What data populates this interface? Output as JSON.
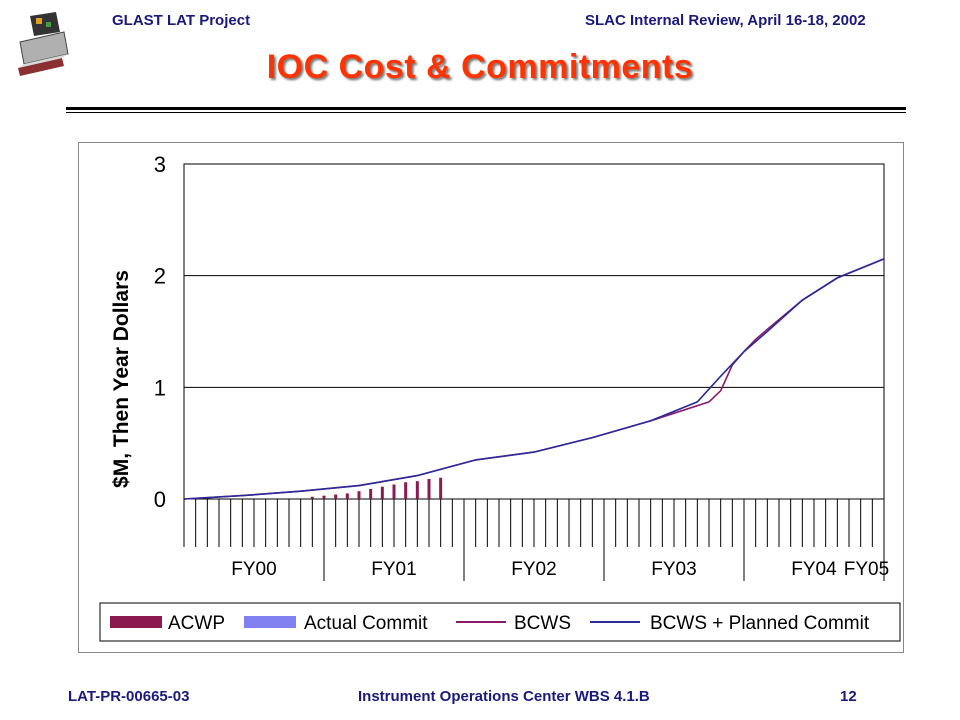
{
  "header": {
    "left": "GLAST LAT Project",
    "right": "SLAC Internal Review, April 16-18, 2002"
  },
  "title": "IOC Cost & Commitments",
  "footer": {
    "left": "LAT-PR-00665-03",
    "center": "Instrument Operations Center WBS 4.1.B",
    "page": "12"
  },
  "logo_icon": "glast-satellite-icon",
  "chart_data": {
    "type": "line",
    "ylabel": "$M, Then Year Dollars",
    "ylim": [
      0,
      3
    ],
    "yticks": [
      0,
      1,
      2,
      3
    ],
    "x_unit": "months from Oct 1999 (FY00 start)",
    "xlim": [
      0,
      60
    ],
    "fiscal_years": [
      "FY00",
      "FY01",
      "FY02",
      "FY03",
      "FY04",
      "FY05"
    ],
    "grid": true,
    "legend_position": "bottom",
    "series": [
      {
        "name": "ACWP",
        "kind": "bar",
        "color": "#8b1a4f",
        "x": [
          11,
          12,
          13,
          14,
          15,
          16,
          17,
          18,
          19,
          20,
          21,
          22
        ],
        "values": [
          0.02,
          0.03,
          0.04,
          0.05,
          0.07,
          0.09,
          0.11,
          0.13,
          0.15,
          0.16,
          0.18,
          0.19
        ]
      },
      {
        "name": "Actual Commit",
        "kind": "bar",
        "color": "#8080f0",
        "x": [],
        "values": []
      },
      {
        "name": "BCWS",
        "kind": "line",
        "color": "#8b1a6b",
        "x": [
          0,
          5,
          10,
          15,
          20,
          25,
          30,
          35,
          40,
          45,
          46,
          47,
          48,
          49,
          50,
          53,
          56,
          60
        ],
        "values": [
          0.0,
          0.03,
          0.07,
          0.12,
          0.21,
          0.35,
          0.42,
          0.55,
          0.7,
          0.87,
          0.97,
          1.2,
          1.32,
          1.43,
          1.52,
          1.78,
          1.98,
          2.15
        ]
      },
      {
        "name": "BCWS + Planned Commit",
        "kind": "line",
        "color": "#2a2a9a",
        "x": [
          0,
          5,
          10,
          15,
          20,
          25,
          30,
          35,
          40,
          44,
          46,
          48,
          50,
          53,
          56,
          60
        ],
        "values": [
          0.0,
          0.03,
          0.07,
          0.12,
          0.21,
          0.35,
          0.42,
          0.55,
          0.7,
          0.87,
          1.1,
          1.32,
          1.5,
          1.78,
          1.98,
          2.15
        ]
      }
    ]
  }
}
